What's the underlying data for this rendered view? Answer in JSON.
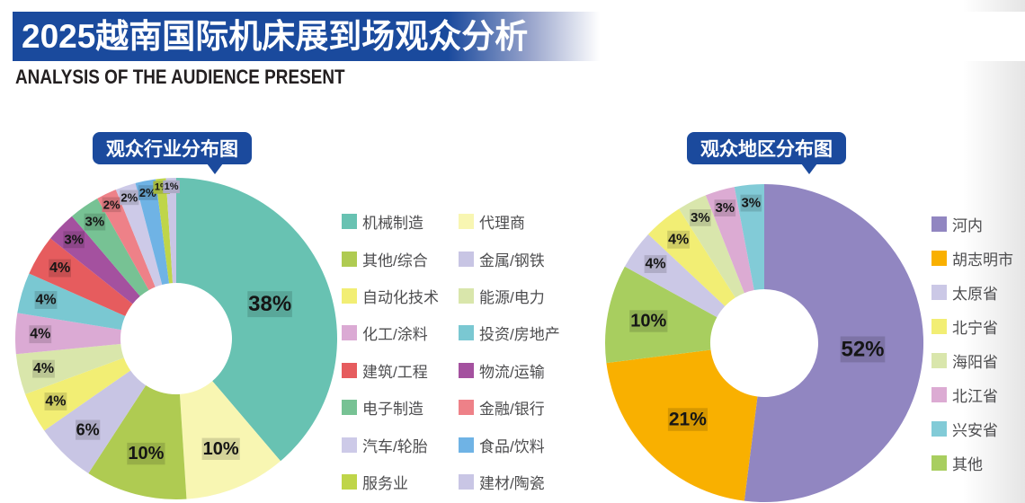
{
  "banner": {
    "title": "2025越南国际机床展到场观众分析",
    "subtitle": "ANALYSIS OF THE AUDIENCE PRESENT"
  },
  "colors": {
    "banner_blue": "#1A4A9D",
    "bubble_blue": "#1B4A9D",
    "label_text": "#151515",
    "legend_text": "#4D4D4F"
  },
  "chart_data": [
    {
      "type": "pie",
      "donut": true,
      "title": "观众行业分布图",
      "unit": "%",
      "legend_position": "right-two-columns",
      "slices": [
        {
          "label": "机械制造",
          "value": 38,
          "color": "#68C2B2"
        },
        {
          "label": "代理商",
          "value": 10,
          "color": "#F8F6B2"
        },
        {
          "label": "其他/综合",
          "value": 10,
          "color": "#AFCB52"
        },
        {
          "label": "金属/钢铁",
          "value": 6,
          "color": "#C8C5E4"
        },
        {
          "label": "自动化技术",
          "value": 4,
          "color": "#F2EE74"
        },
        {
          "label": "能源/电力",
          "value": 4,
          "color": "#D9E6AB"
        },
        {
          "label": "化工/涂料",
          "value": 4,
          "color": "#DBAAD4"
        },
        {
          "label": "投资/房地产",
          "value": 4,
          "color": "#7AC8D2"
        },
        {
          "label": "建筑/工程",
          "value": 4,
          "color": "#E65C5E"
        },
        {
          "label": "物流/运输",
          "value": 3,
          "color": "#A4519F"
        },
        {
          "label": "电子制造",
          "value": 3,
          "color": "#77C294"
        },
        {
          "label": "金融/银行",
          "value": 2,
          "color": "#EE8188"
        },
        {
          "label": "汽车/轮胎",
          "value": 2,
          "color": "#CDCAE8"
        },
        {
          "label": "食品/饮料",
          "value": 2,
          "color": "#6FB3E5"
        },
        {
          "label": "服务业",
          "value": 1,
          "color": "#BFD549"
        },
        {
          "label": "建材/陶瓷",
          "value": 1,
          "color": "#C9C6E5"
        }
      ],
      "legend_columns": [
        [
          0,
          2,
          4,
          6,
          8,
          10,
          12,
          14
        ],
        [
          1,
          3,
          5,
          7,
          9,
          11,
          13,
          15
        ]
      ]
    },
    {
      "type": "pie",
      "donut": true,
      "title": "观众地区分布图",
      "unit": "%",
      "legend_position": "right-one-column",
      "slices": [
        {
          "label": "河内",
          "value": 52,
          "color": "#9186C1"
        },
        {
          "label": "胡志明市",
          "value": 21,
          "color": "#F9B000"
        },
        {
          "label": "其他",
          "value": 10,
          "color": "#A8CE5F"
        },
        {
          "label": "太原省",
          "value": 4,
          "color": "#CBC8E6"
        },
        {
          "label": "北宁省",
          "value": 4,
          "color": "#F2EE74"
        },
        {
          "label": "海阳省",
          "value": 3,
          "color": "#D9E6AC"
        },
        {
          "label": "北江省",
          "value": 3,
          "color": "#DCABD3"
        },
        {
          "label": "兴安省",
          "value": 3,
          "color": "#82CBD7"
        }
      ],
      "legend_columns": [
        [
          0,
          1,
          3,
          4,
          5,
          6,
          7,
          2
        ]
      ]
    }
  ]
}
